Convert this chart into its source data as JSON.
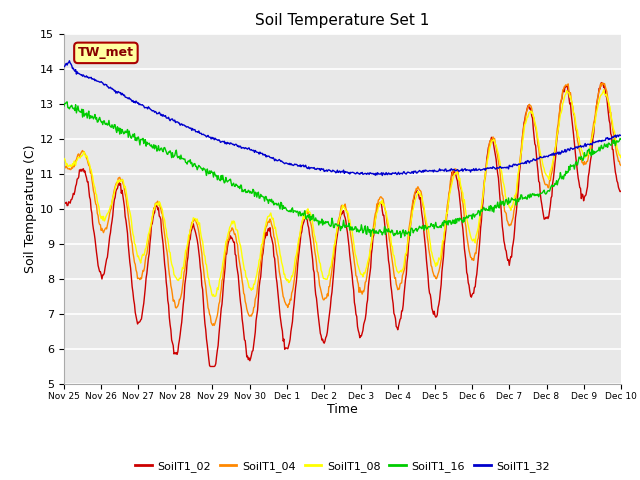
{
  "title": "Soil Temperature Set 1",
  "xlabel": "Time",
  "ylabel": "Soil Temperature (C)",
  "ylim": [
    5.0,
    15.0
  ],
  "yticks": [
    5.0,
    6.0,
    7.0,
    8.0,
    9.0,
    10.0,
    11.0,
    12.0,
    13.0,
    14.0,
    15.0
  ],
  "bg_color": "#e8e8e8",
  "fig_color": "#ffffff",
  "grid_color": "#ffffff",
  "annotation_text": "TW_met",
  "annotation_bg": "#ffffa0",
  "annotation_border": "#aa0000",
  "series_colors": {
    "SoilT1_02": "#cc0000",
    "SoilT1_04": "#ff8800",
    "SoilT1_08": "#ffff00",
    "SoilT1_16": "#00cc00",
    "SoilT1_32": "#0000cc"
  },
  "legend_line_colors": [
    "#cc0000",
    "#ff8800",
    "#ffff00",
    "#00cc00",
    "#0000cc"
  ],
  "legend_labels": [
    "SoilT1_02",
    "SoilT1_04",
    "SoilT1_08",
    "SoilT1_16",
    "SoilT1_32"
  ],
  "xticklabels": [
    "Nov 25",
    "Nov 26",
    "Nov 27",
    "Nov 28",
    "Nov 29",
    "Nov 30",
    "Dec 1",
    "Dec 2",
    "Dec 3",
    "Dec 4",
    "Dec 5",
    "Dec 6",
    "Dec 7",
    "Dec 8",
    "Dec 9",
    "Dec 10"
  ],
  "n_days": 15
}
